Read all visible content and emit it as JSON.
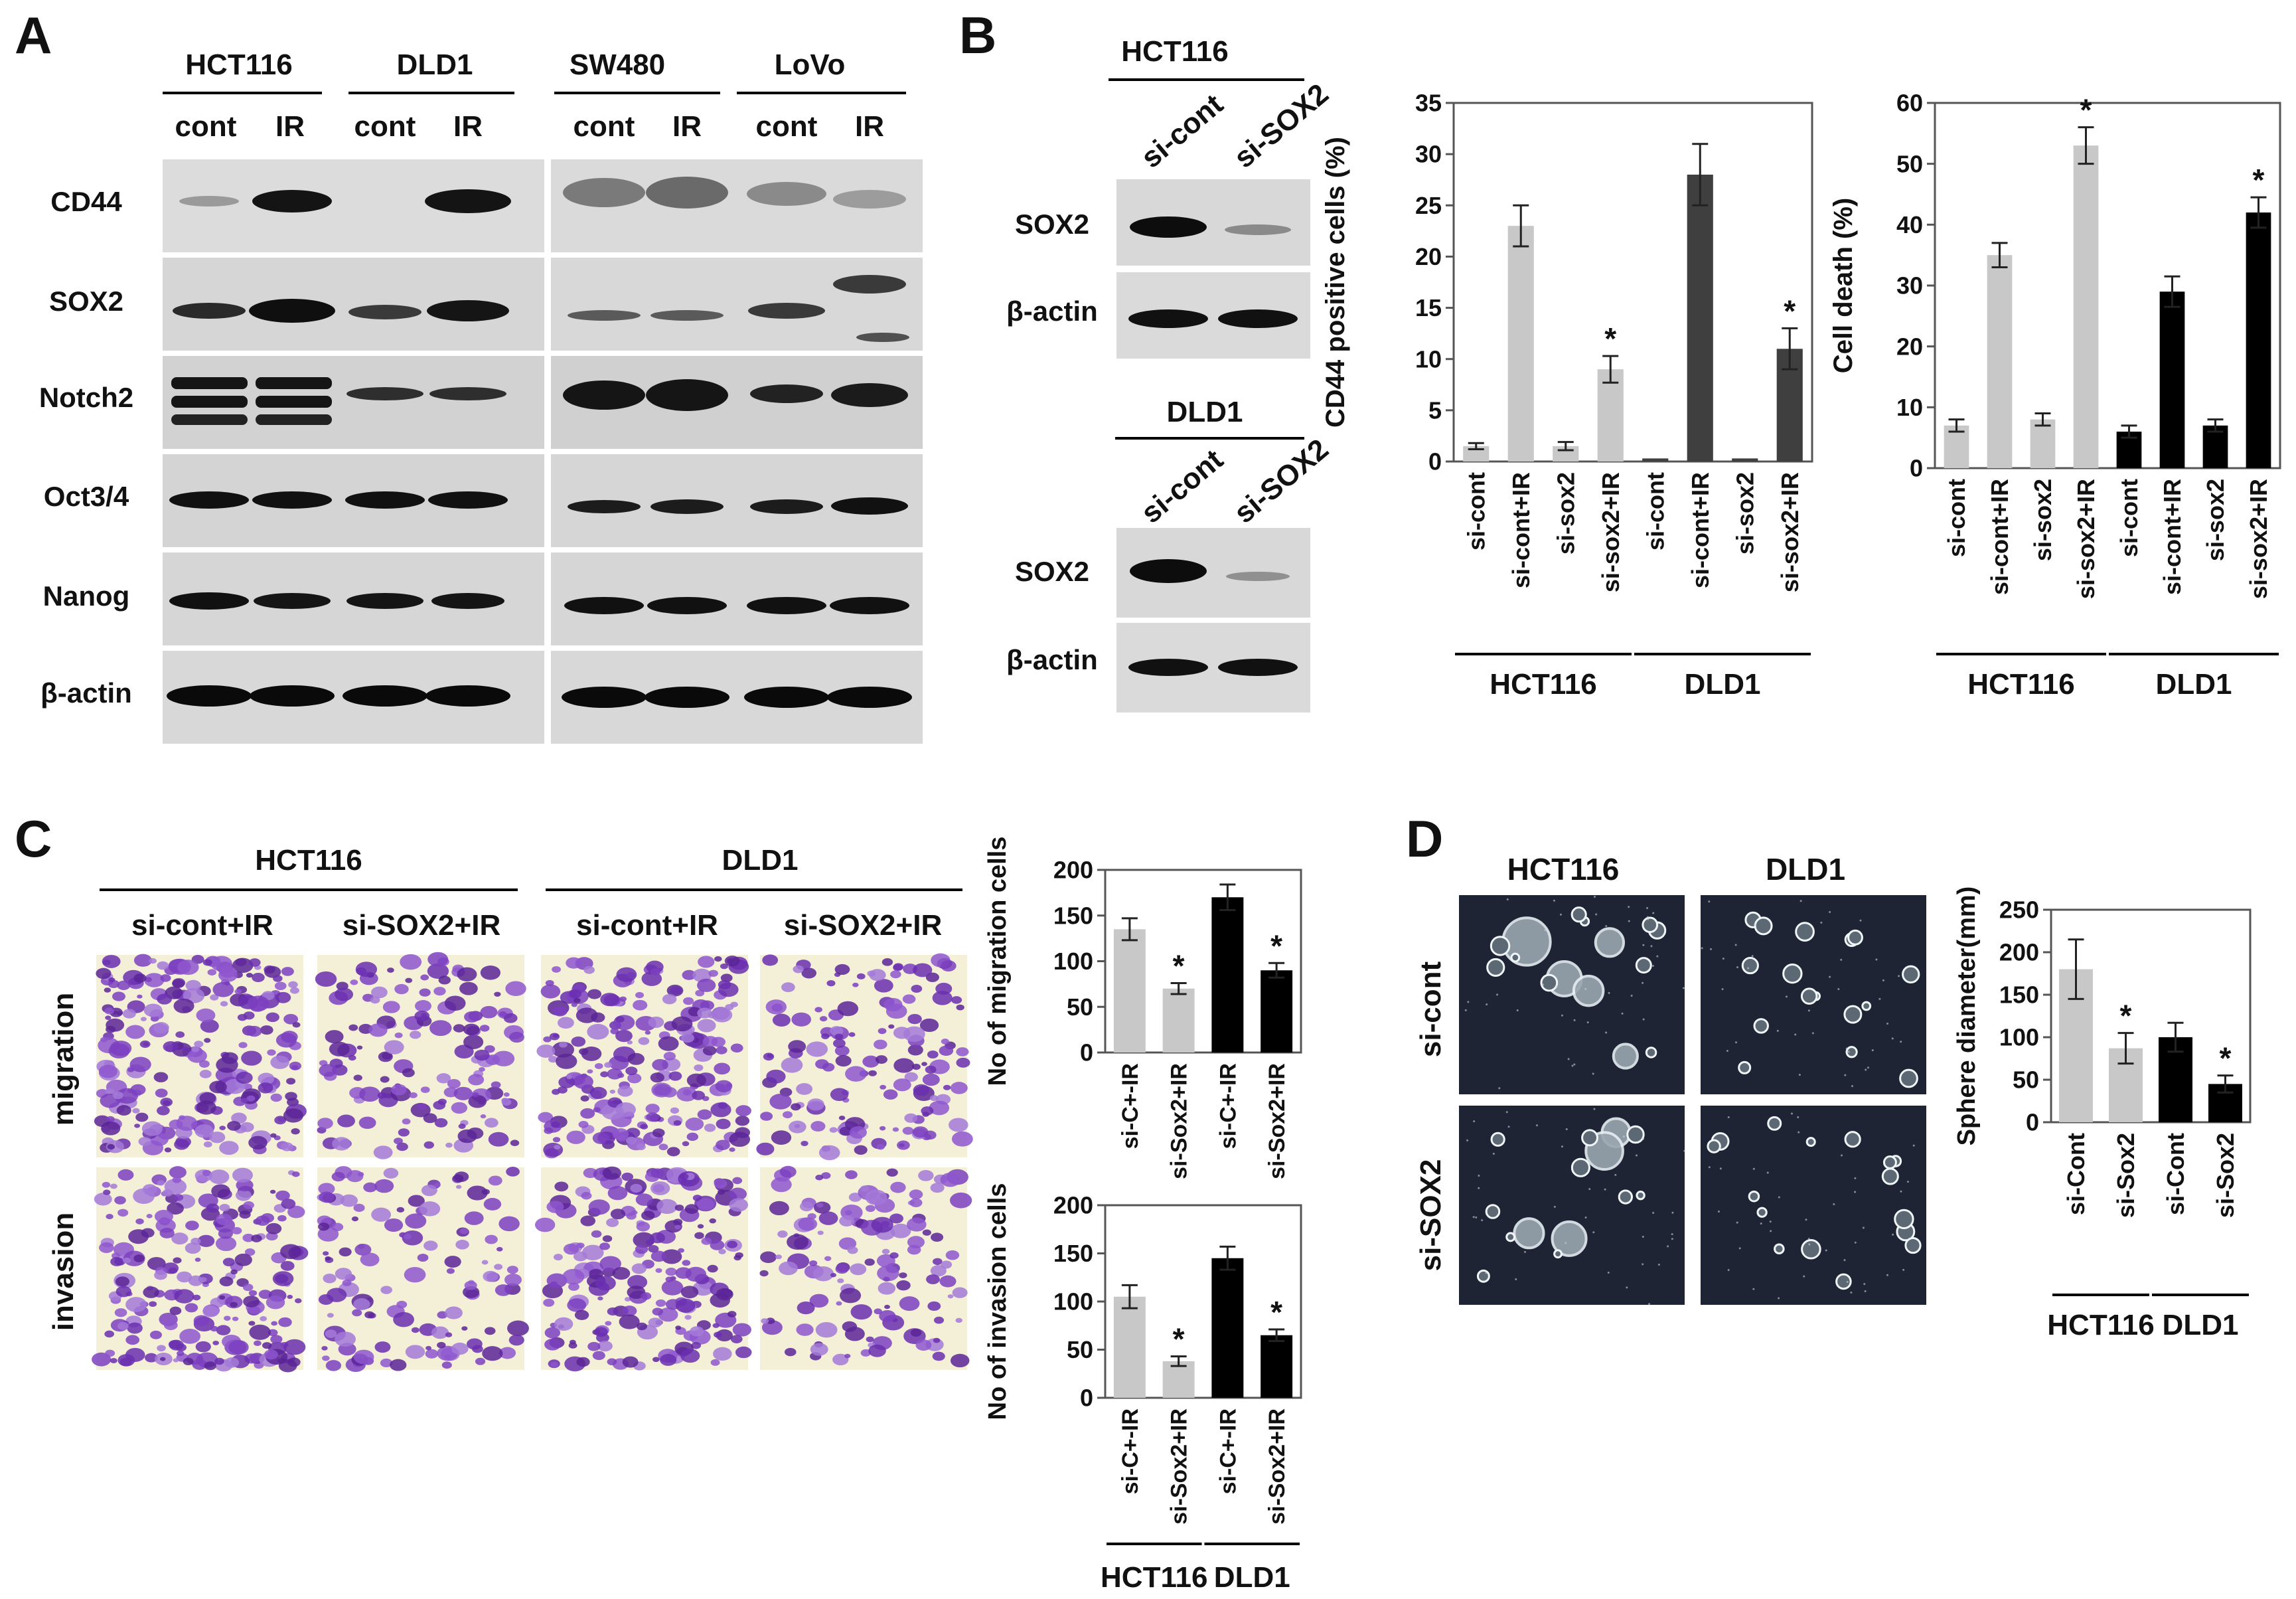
{
  "panels": {
    "A": "A",
    "B": "B",
    "C": "C",
    "D": "D"
  },
  "colors": {
    "light_bar": "#c8c8c8",
    "dark_bar_B": "#3f3f3f",
    "black_bar": "#000000",
    "stain_purple": "#7b3fbf",
    "stain_bg": "#f4f0d8",
    "sphere_bg": "#1e2433"
  },
  "panelA": {
    "group_labels": [
      "HCT116",
      "DLD1",
      "SW480",
      "LoVo"
    ],
    "lane_labels": [
      "cont",
      "IR",
      "cont",
      "IR",
      "cont",
      "IR",
      "cont",
      "IR"
    ],
    "proteins": [
      "CD44",
      "SOX2",
      "Notch2",
      "Oct3/4",
      "Nanog",
      "β-actin"
    ]
  },
  "panelB_blots": {
    "top_cell": "HCT116",
    "bottom_cell": "DLD1",
    "lane_labels": [
      "si-cont",
      "si-SOX2"
    ],
    "rows": [
      "SOX2",
      "β-actin"
    ]
  },
  "panelC_images": {
    "cells": [
      "HCT116",
      "DLD1"
    ],
    "conditions": [
      "si-cont+IR",
      "si-SOX2+IR",
      "si-cont+IR",
      "si-SOX2+IR"
    ],
    "rows": [
      "migration",
      "invasion"
    ]
  },
  "panelD_images": {
    "cells": [
      "HCT116",
      "DLD1"
    ],
    "rows": [
      "si-cont",
      "si-SOX2"
    ]
  },
  "chart_data": [
    {
      "id": "B-cd44",
      "type": "bar",
      "ylabel": "CD44 positive cells (%)",
      "ylim": [
        0,
        35
      ],
      "yticks": [
        0,
        5,
        10,
        15,
        20,
        25,
        30,
        35
      ],
      "categories": [
        "si-cont",
        "si-cont+IR",
        "si-sox2",
        "si-sox2+IR",
        "si-cont",
        "si-cont+IR",
        "si-sox2",
        "si-sox2+IR"
      ],
      "values": [
        1.5,
        23,
        1.5,
        9,
        0.3,
        28,
        0.3,
        11
      ],
      "errors": [
        0.3,
        2,
        0.4,
        1.3,
        0,
        3,
        0,
        2
      ],
      "significant": [
        false,
        false,
        false,
        true,
        false,
        false,
        false,
        true
      ],
      "bar_colors": [
        "light",
        "light",
        "light",
        "light",
        "darkB",
        "darkB",
        "darkB",
        "darkB"
      ],
      "groups": [
        {
          "label": "HCT116",
          "span": [
            0,
            3
          ]
        },
        {
          "label": "DLD1",
          "span": [
            4,
            7
          ]
        }
      ],
      "significance_mark": "*"
    },
    {
      "id": "B-death",
      "type": "bar",
      "ylabel": "Cell death (%)",
      "ylim": [
        0,
        60
      ],
      "yticks": [
        0,
        10,
        20,
        30,
        40,
        50,
        60
      ],
      "categories": [
        "si-cont",
        "si-cont+IR",
        "si-sox2",
        "si-sox2+IR",
        "si-cont",
        "si-cont+IR",
        "si-sox2",
        "si-sox2+IR"
      ],
      "values": [
        7,
        35,
        8,
        53,
        6,
        29,
        7,
        42
      ],
      "errors": [
        1,
        2,
        1,
        3,
        1,
        2.5,
        1,
        2.5
      ],
      "significant": [
        false,
        false,
        false,
        true,
        false,
        false,
        false,
        true
      ],
      "bar_colors": [
        "light",
        "light",
        "light",
        "light",
        "black",
        "black",
        "black",
        "black"
      ],
      "groups": [
        {
          "label": "HCT116",
          "span": [
            0,
            3
          ]
        },
        {
          "label": "DLD1",
          "span": [
            4,
            7
          ]
        }
      ],
      "significance_mark": "*"
    },
    {
      "id": "C-migration",
      "type": "bar",
      "ylabel": "No of  migration cells",
      "ylim": [
        0,
        200
      ],
      "yticks": [
        0,
        50,
        100,
        150,
        200
      ],
      "categories": [
        "si-C+-IR",
        "si-Sox2+IR",
        "si-C+-IR",
        "si-Sox2+IR"
      ],
      "values": [
        135,
        70,
        170,
        90
      ],
      "errors": [
        12,
        6,
        14,
        8
      ],
      "significant": [
        false,
        true,
        false,
        true
      ],
      "bar_colors": [
        "light",
        "light",
        "black",
        "black"
      ],
      "groups": [],
      "significance_mark": "*"
    },
    {
      "id": "C-invasion",
      "type": "bar",
      "ylabel": "No of  invasion cells",
      "ylim": [
        0,
        200
      ],
      "yticks": [
        0,
        50,
        100,
        150,
        200
      ],
      "categories": [
        "si-C+-IR",
        "si-Sox2+IR",
        "si-C+-IR",
        "si-Sox2+IR"
      ],
      "values": [
        105,
        38,
        145,
        65
      ],
      "errors": [
        12,
        5,
        12,
        6
      ],
      "significant": [
        false,
        true,
        false,
        true
      ],
      "bar_colors": [
        "light",
        "light",
        "black",
        "black"
      ],
      "groups": [
        {
          "label": "HCT116",
          "span": [
            0,
            1
          ]
        },
        {
          "label": "DLD1",
          "span": [
            2,
            3
          ]
        }
      ],
      "significance_mark": "*"
    },
    {
      "id": "D-sphere",
      "type": "bar",
      "ylabel": "Sphere diameter(mm)",
      "ylim": [
        0,
        250
      ],
      "yticks": [
        0,
        50,
        100,
        150,
        200,
        250
      ],
      "categories": [
        "si-Cont",
        "si-Sox2",
        "si-Cont",
        "si-Sox2"
      ],
      "values": [
        180,
        87,
        100,
        45
      ],
      "errors": [
        35,
        18,
        17,
        10
      ],
      "significant": [
        false,
        true,
        false,
        true
      ],
      "bar_colors": [
        "light",
        "light",
        "black",
        "black"
      ],
      "groups": [
        {
          "label": "HCT116",
          "span": [
            0,
            1
          ]
        },
        {
          "label": "DLD1",
          "span": [
            2,
            3
          ]
        }
      ],
      "significance_mark": "*"
    }
  ]
}
